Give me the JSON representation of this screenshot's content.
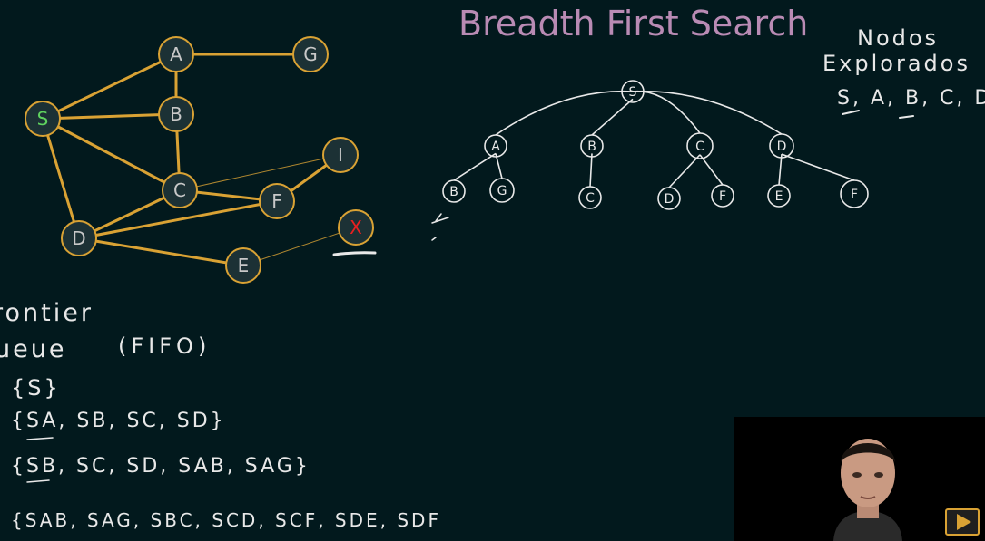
{
  "title": "Breadth First Search",
  "colors": {
    "background": "#02191d",
    "graph_edge": "#d9a234",
    "graph_node_fill": "#1c3135",
    "node_label": "#c8c8c8",
    "start_label": "#5fd35f",
    "goal_label": "#e82020",
    "title": "#b98bb4",
    "chalk": "#e8e8e8"
  },
  "graph": {
    "nodes": [
      {
        "id": "A",
        "label": "A"
      },
      {
        "id": "G",
        "label": "G"
      },
      {
        "id": "S",
        "label": "S",
        "role": "start"
      },
      {
        "id": "B",
        "label": "B"
      },
      {
        "id": "I",
        "label": "I"
      },
      {
        "id": "C",
        "label": "C"
      },
      {
        "id": "F",
        "label": "F"
      },
      {
        "id": "X",
        "label": "X",
        "role": "goal"
      },
      {
        "id": "D",
        "label": "D"
      },
      {
        "id": "E",
        "label": "E"
      }
    ],
    "edges": [
      {
        "from": "A",
        "to": "G"
      },
      {
        "from": "S",
        "to": "A"
      },
      {
        "from": "S",
        "to": "B"
      },
      {
        "from": "A",
        "to": "B"
      },
      {
        "from": "S",
        "to": "C"
      },
      {
        "from": "S",
        "to": "D"
      },
      {
        "from": "B",
        "to": "C"
      },
      {
        "from": "C",
        "to": "I",
        "weight": "thin"
      },
      {
        "from": "C",
        "to": "F"
      },
      {
        "from": "F",
        "to": "I"
      },
      {
        "from": "C",
        "to": "D"
      },
      {
        "from": "D",
        "to": "F"
      },
      {
        "from": "D",
        "to": "E"
      },
      {
        "from": "E",
        "to": "X",
        "weight": "thin"
      }
    ]
  },
  "search_tree": {
    "nodes": [
      {
        "id": "t-S",
        "label": "S"
      },
      {
        "id": "t-A",
        "label": "A"
      },
      {
        "id": "t-B",
        "label": "B"
      },
      {
        "id": "t-C",
        "label": "C"
      },
      {
        "id": "t-D",
        "label": "D"
      },
      {
        "id": "t-AB",
        "label": "B"
      },
      {
        "id": "t-AG",
        "label": "G"
      },
      {
        "id": "t-BC",
        "label": "C"
      },
      {
        "id": "t-CD",
        "label": "D"
      },
      {
        "id": "t-CF",
        "label": "F"
      },
      {
        "id": "t-DE",
        "label": "E"
      },
      {
        "id": "t-DF",
        "label": "F"
      }
    ],
    "edges": [
      {
        "from": "t-S",
        "to": "t-A"
      },
      {
        "from": "t-S",
        "to": "t-B"
      },
      {
        "from": "t-S",
        "to": "t-C"
      },
      {
        "from": "t-S",
        "to": "t-D"
      },
      {
        "from": "t-A",
        "to": "t-AB"
      },
      {
        "from": "t-A",
        "to": "t-AG"
      },
      {
        "from": "t-B",
        "to": "t-BC"
      },
      {
        "from": "t-C",
        "to": "t-CD"
      },
      {
        "from": "t-C",
        "to": "t-CF"
      },
      {
        "from": "t-D",
        "to": "t-DE"
      },
      {
        "from": "t-D",
        "to": "t-DF"
      }
    ]
  },
  "explored": {
    "heading_line1": "Nodos",
    "heading_line2": "Explorados",
    "list": "S, A, B, C, D,"
  },
  "frontier": {
    "heading_line1": "rontier",
    "heading_line2": "ueue",
    "fifo": "(FIFO)",
    "rows": [
      "{S}",
      "{SA, SB, SC, SD}",
      "{SB, SC, SD, SAB, SAG}",
      "{SAB, SAG, SBC, SCD, SCF, SDE, SDF"
    ]
  },
  "icons": {
    "play": "play-icon"
  }
}
